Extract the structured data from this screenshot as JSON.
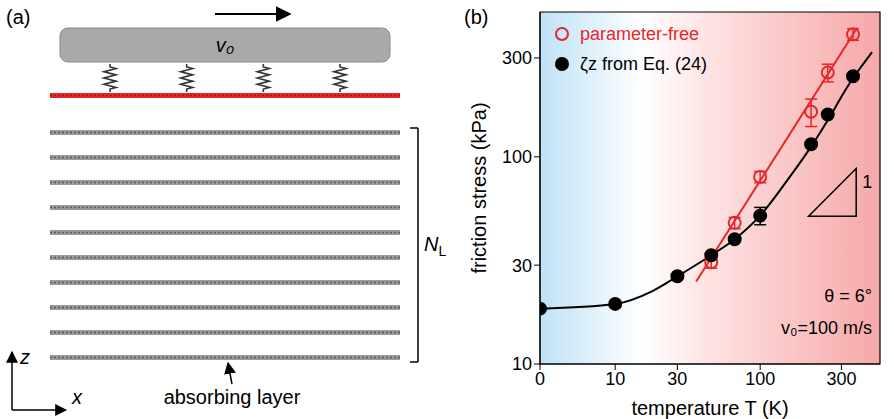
{
  "diagram": {
    "label": "(a)",
    "velocity_label": "v₀",
    "stack_label": {
      "main": "N",
      "sub": "L"
    },
    "absorbing_label": "absorbing layer",
    "axis_labels": {
      "vertical": "z",
      "horizontal": "x"
    },
    "layers": 10,
    "springs": 4
  },
  "chart_data": {
    "type": "scatter",
    "title": "(b)",
    "xlabel": "temperature T (K)",
    "ylabel": "friction stress (kPa)",
    "log": true,
    "xlim": [
      0,
      500
    ],
    "xticks": [
      0,
      10,
      30,
      100,
      300
    ],
    "ylim": [
      10,
      500
    ],
    "yticks": [
      10,
      30,
      100,
      300
    ],
    "legend": "upper left",
    "series": [
      {
        "type": "line",
        "color": "#e8262a",
        "x": [
          40,
          370
        ],
        "values": [
          25,
          420
        ]
      },
      {
        "type": "line",
        "color": "#000000",
        "x": [
          0,
          10,
          20,
          30,
          50,
          70,
          100,
          150,
          200,
          250,
          300,
          350,
          400,
          450
        ],
        "values": [
          18.5,
          19.5,
          22.5,
          26.5,
          33.5,
          40,
          52,
          80,
          112,
          150,
          195,
          240,
          280,
          320
        ]
      },
      {
        "type": "scatter",
        "name": "parameter-free",
        "color": "#e8262a",
        "marker": "open_circle",
        "x": [
          50,
          70,
          100,
          200,
          250,
          350
        ],
        "values": [
          31,
          48,
          80,
          165,
          255,
          390
        ],
        "errors": [
          2,
          3,
          5,
          25,
          25,
          25
        ]
      },
      {
        "type": "scatter",
        "name": "ζz from Eq. (24)",
        "color": "#000000",
        "marker": "filled_circle",
        "x": [
          0,
          10,
          30,
          50,
          70,
          100,
          200,
          250,
          350
        ],
        "values": [
          18.5,
          19.5,
          26.5,
          33.5,
          40,
          52,
          115,
          160,
          245
        ],
        "errors": [
          0,
          0,
          0,
          0,
          0,
          5,
          0,
          0,
          0
        ]
      }
    ],
    "annotations": [
      "θ = 6°",
      "v₀=100 m/s"
    ],
    "slope_label": "1"
  }
}
